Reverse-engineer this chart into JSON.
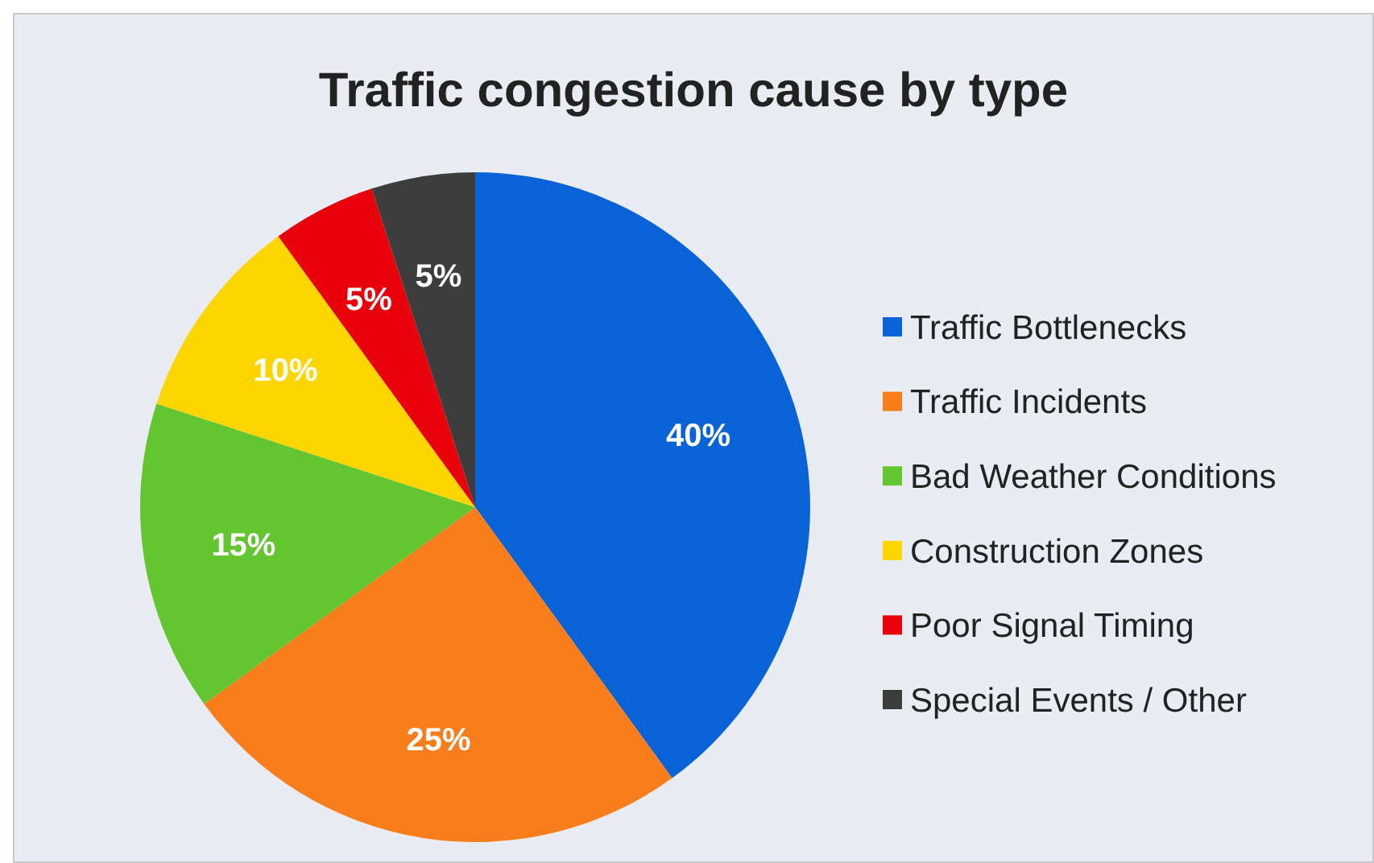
{
  "chart_data": {
    "type": "pie",
    "title": "Traffic congestion cause by type",
    "categories": [
      "Traffic Bottlenecks",
      "Traffic Incidents",
      "Bad Weather Conditions",
      "Construction Zones",
      "Poor Signal Timing",
      "Special Events / Other"
    ],
    "values": [
      40,
      25,
      15,
      10,
      5,
      5
    ],
    "colors": [
      "#0a63d6",
      "#f97d1a",
      "#63c52f",
      "#fdd500",
      "#e8000b",
      "#3d3d3d"
    ],
    "value_labels": [
      "40%",
      "25%",
      "15%",
      "10%",
      "5%",
      "5%"
    ],
    "legend": "right"
  }
}
